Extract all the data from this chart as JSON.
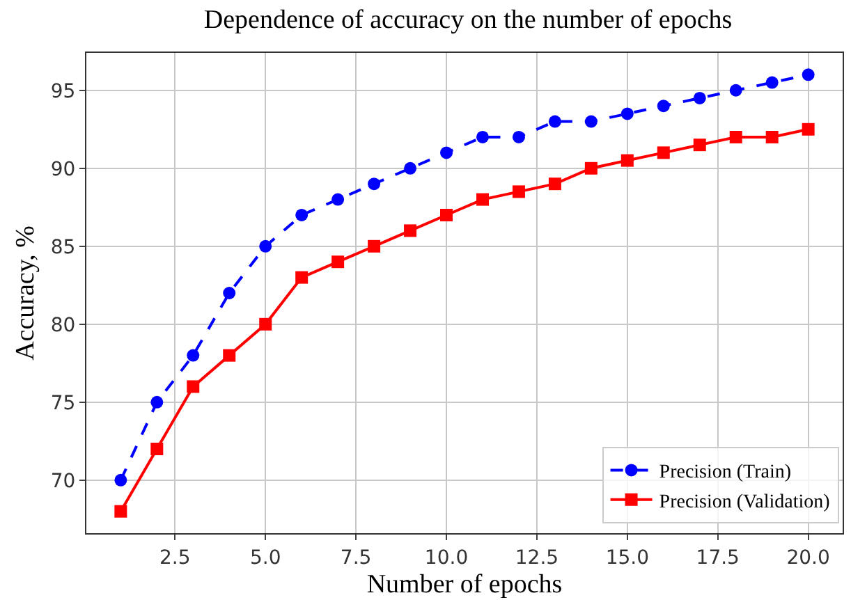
{
  "chart_data": {
    "type": "line",
    "title": "Dependence of accuracy on the number of epochs",
    "xlabel": "Number of epochs",
    "ylabel": "Accuracy, %",
    "x": [
      1,
      2,
      3,
      4,
      5,
      6,
      7,
      8,
      9,
      10,
      11,
      12,
      13,
      14,
      15,
      16,
      17,
      18,
      19,
      20
    ],
    "series": [
      {
        "name": "Precision (Train)",
        "color": "#0000ff",
        "marker": "circle",
        "line_style": "dashed",
        "values": [
          70,
          75,
          78,
          82,
          85,
          87,
          88,
          89,
          90,
          91,
          92,
          92,
          93,
          93,
          93.5,
          94,
          94.5,
          95,
          95.5,
          96
        ]
      },
      {
        "name": "Precision (Validation)",
        "color": "#ff0000",
        "marker": "square",
        "line_style": "solid",
        "values": [
          68,
          72,
          76,
          78,
          80,
          83,
          84,
          85,
          86,
          87,
          88,
          88.5,
          89,
          90,
          90.5,
          91,
          91.5,
          92,
          92,
          92.5
        ]
      }
    ],
    "xlim": [
      0.05,
      20.95
    ],
    "ylim": [
      66.6,
      97.4
    ],
    "xticks": [
      {
        "value": 2.5,
        "label": "2.5"
      },
      {
        "value": 5,
        "label": "5.0"
      },
      {
        "value": 7.5,
        "label": "7.5"
      },
      {
        "value": 10,
        "label": "10.0"
      },
      {
        "value": 12.5,
        "label": "12.5"
      },
      {
        "value": 15,
        "label": "15.0"
      },
      {
        "value": 17.5,
        "label": "17.5"
      },
      {
        "value": 20,
        "label": "20.0"
      }
    ],
    "yticks": [
      70,
      75,
      80,
      85,
      90,
      95
    ],
    "grid": true,
    "legend": "bottom right"
  }
}
